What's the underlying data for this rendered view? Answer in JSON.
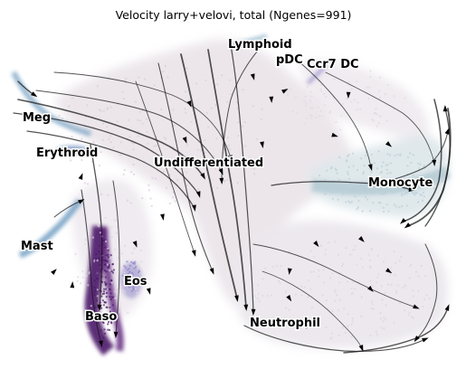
{
  "chart_data": {
    "type": "scatter",
    "title": "Velocity larry+velovi, total (Ngenes=991)",
    "xlabel": "",
    "ylabel": "",
    "grid": false,
    "axes_visible": false,
    "overlay": "velocity-streamlines",
    "clusters": [
      {
        "name": "Lymphoid",
        "color": "#8fb2c9"
      },
      {
        "name": "pDC",
        "color": "#b9a8d6"
      },
      {
        "name": "Ccr7 DC",
        "color": "#9b8cc9"
      },
      {
        "name": "Meg",
        "color": "#7ea6c4"
      },
      {
        "name": "Erythroid",
        "color": "#6f8fbd"
      },
      {
        "name": "Undifferentiated",
        "color": "#d7ccd6"
      },
      {
        "name": "Monocyte",
        "color": "#b7cdd6"
      },
      {
        "name": "Mast",
        "color": "#6b98c0"
      },
      {
        "name": "Eos",
        "color": "#8f86c6"
      },
      {
        "name": "Baso",
        "color": "#4a1a68"
      },
      {
        "name": "Neutrophil",
        "color": "#d9d3de"
      }
    ]
  }
}
